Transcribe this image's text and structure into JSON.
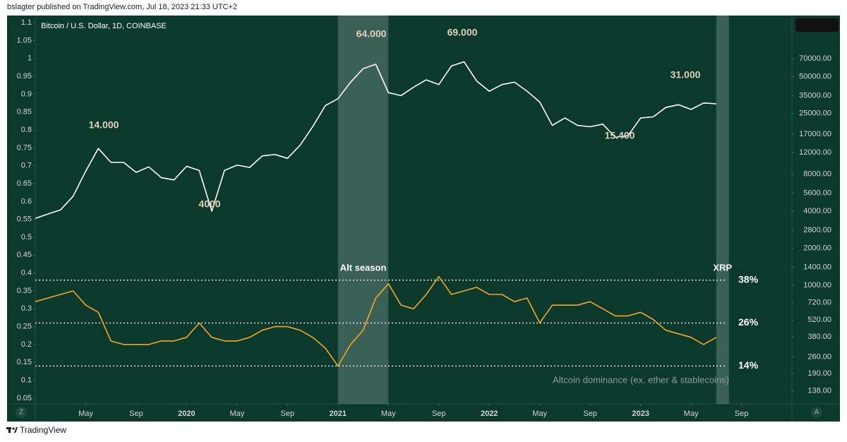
{
  "header": "bslagter published on TradingView.com, Jul 18, 2023 21:33 UTC+2",
  "footer": "TradingView",
  "buttons": [
    "Z",
    "A"
  ],
  "chart_data": {
    "type": "line",
    "x": [
      "2019-01",
      "2019-02",
      "2019-03",
      "2019-04",
      "2019-05",
      "2019-06",
      "2019-07",
      "2019-08",
      "2019-09",
      "2019-10",
      "2019-11",
      "2019-12",
      "2020-01",
      "2020-02",
      "2020-03",
      "2020-04",
      "2020-05",
      "2020-06",
      "2020-07",
      "2020-08",
      "2020-09",
      "2020-10",
      "2020-11",
      "2020-12",
      "2021-01",
      "2021-02",
      "2021-03",
      "2021-04",
      "2021-05",
      "2021-06",
      "2021-07",
      "2021-08",
      "2021-09",
      "2021-10",
      "2021-11",
      "2021-12",
      "2022-01",
      "2022-02",
      "2022-03",
      "2022-04",
      "2022-05",
      "2022-06",
      "2022-07",
      "2022-08",
      "2022-09",
      "2022-10",
      "2022-11",
      "2022-12",
      "2023-01",
      "2023-02",
      "2023-03",
      "2023-04",
      "2023-05",
      "2023-06",
      "2023-07"
    ],
    "series": [
      {
        "name": "Bitcoin / U.S. Dollar, 1D, COINBASE",
        "color": "#ffffff",
        "axis": "y2",
        "values": [
          3500,
          3800,
          4100,
          5300,
          8500,
          13000,
          10000,
          10000,
          8300,
          9200,
          7500,
          7200,
          9300,
          8600,
          4000,
          8600,
          9500,
          9100,
          11300,
          11600,
          10800,
          13800,
          19600,
          29000,
          33000,
          45000,
          58000,
          63000,
          37000,
          35000,
          41000,
          47000,
          43000,
          61000,
          66000,
          46000,
          38000,
          43000,
          45000,
          38000,
          31000,
          20000,
          23000,
          20000,
          19500,
          20500,
          16000,
          16500,
          23000,
          23500,
          28000,
          29500,
          27000,
          30500,
          30000
        ]
      },
      {
        "name": "Altcoin dominance (ex. ether & stablecoins)",
        "color": "#f5a623",
        "values": [
          0.32,
          0.33,
          0.34,
          0.35,
          0.31,
          0.29,
          0.21,
          0.2,
          0.2,
          0.2,
          0.21,
          0.21,
          0.22,
          0.26,
          0.22,
          0.21,
          0.21,
          0.22,
          0.24,
          0.25,
          0.25,
          0.24,
          0.22,
          0.19,
          0.14,
          0.2,
          0.24,
          0.33,
          0.37,
          0.31,
          0.3,
          0.34,
          0.39,
          0.34,
          0.35,
          0.36,
          0.34,
          0.34,
          0.32,
          0.33,
          0.26,
          0.31,
          0.31,
          0.31,
          0.32,
          0.3,
          0.28,
          0.28,
          0.29,
          0.27,
          0.24,
          0.23,
          0.22,
          0.2,
          0.22
        ]
      }
    ],
    "xlim": [
      "2019-01",
      "2024-01"
    ],
    "xticks": [
      {
        "value": "2019-05",
        "label": "May"
      },
      {
        "value": "2019-09",
        "label": "Sep"
      },
      {
        "value": "2020-01",
        "label": "2020"
      },
      {
        "value": "2020-05",
        "label": "May"
      },
      {
        "value": "2020-09",
        "label": "Sep"
      },
      {
        "value": "2021-01",
        "label": "2021"
      },
      {
        "value": "2021-05",
        "label": "May"
      },
      {
        "value": "2021-09",
        "label": "Sep"
      },
      {
        "value": "2022-01",
        "label": "2022"
      },
      {
        "value": "2022-05",
        "label": "May"
      },
      {
        "value": "2022-09",
        "label": "Sep"
      },
      {
        "value": "2023-01",
        "label": "2023"
      },
      {
        "value": "2023-05",
        "label": "May"
      },
      {
        "value": "2023-09",
        "label": "Sep"
      }
    ],
    "ylim": [
      0.034,
      1.12
    ],
    "yticks": [
      0.05,
      0.1,
      0.15,
      0.2,
      0.25,
      0.3,
      0.35,
      0.4,
      0.45,
      0.5,
      0.55,
      0.6,
      0.65,
      0.7,
      0.75,
      0.8,
      0.85,
      0.9,
      0.95,
      1,
      1.05,
      1.1
    ],
    "y2scale": "log",
    "y2lim": [
      108,
      157000
    ],
    "y2ticks": [
      {
        "value": 138,
        "label": "138.00"
      },
      {
        "value": 190,
        "label": "190.00"
      },
      {
        "value": 260,
        "label": "260.00"
      },
      {
        "value": 380,
        "label": "380.00"
      },
      {
        "value": 520,
        "label": "520.00"
      },
      {
        "value": 720,
        "label": "720.00"
      },
      {
        "value": 1000,
        "label": "1000.00"
      },
      {
        "value": 1400,
        "label": "1400.00"
      },
      {
        "value": 2000,
        "label": "2000.00"
      },
      {
        "value": 2800,
        "label": "2800.00"
      },
      {
        "value": 4000,
        "label": "4000.00"
      },
      {
        "value": 5600,
        "label": "5600.00"
      },
      {
        "value": 8000,
        "label": "8000.00"
      },
      {
        "value": 12000,
        "label": "12000.00"
      },
      {
        "value": 17000,
        "label": "17000.00"
      },
      {
        "value": 25000,
        "label": "25000.00"
      },
      {
        "value": 35000,
        "label": "35000.00"
      },
      {
        "value": 50000,
        "label": "50000.00"
      },
      {
        "value": 70000,
        "label": "70000.00"
      }
    ],
    "regions": [
      {
        "label": "Alt season",
        "start": "2021-01",
        "end": "2021-05"
      },
      {
        "label": "XRP",
        "start": "2023-07",
        "end": "2023-08"
      }
    ],
    "reference_lines": [
      {
        "value": 0.38,
        "label": "38%"
      },
      {
        "value": 0.26,
        "label": "26%"
      },
      {
        "value": 0.14,
        "label": "14%"
      }
    ],
    "annotations": [
      "14.000",
      "4000",
      "64.000",
      "69.000",
      "15.400",
      "31.000"
    ],
    "background": "#0b3a2c"
  }
}
